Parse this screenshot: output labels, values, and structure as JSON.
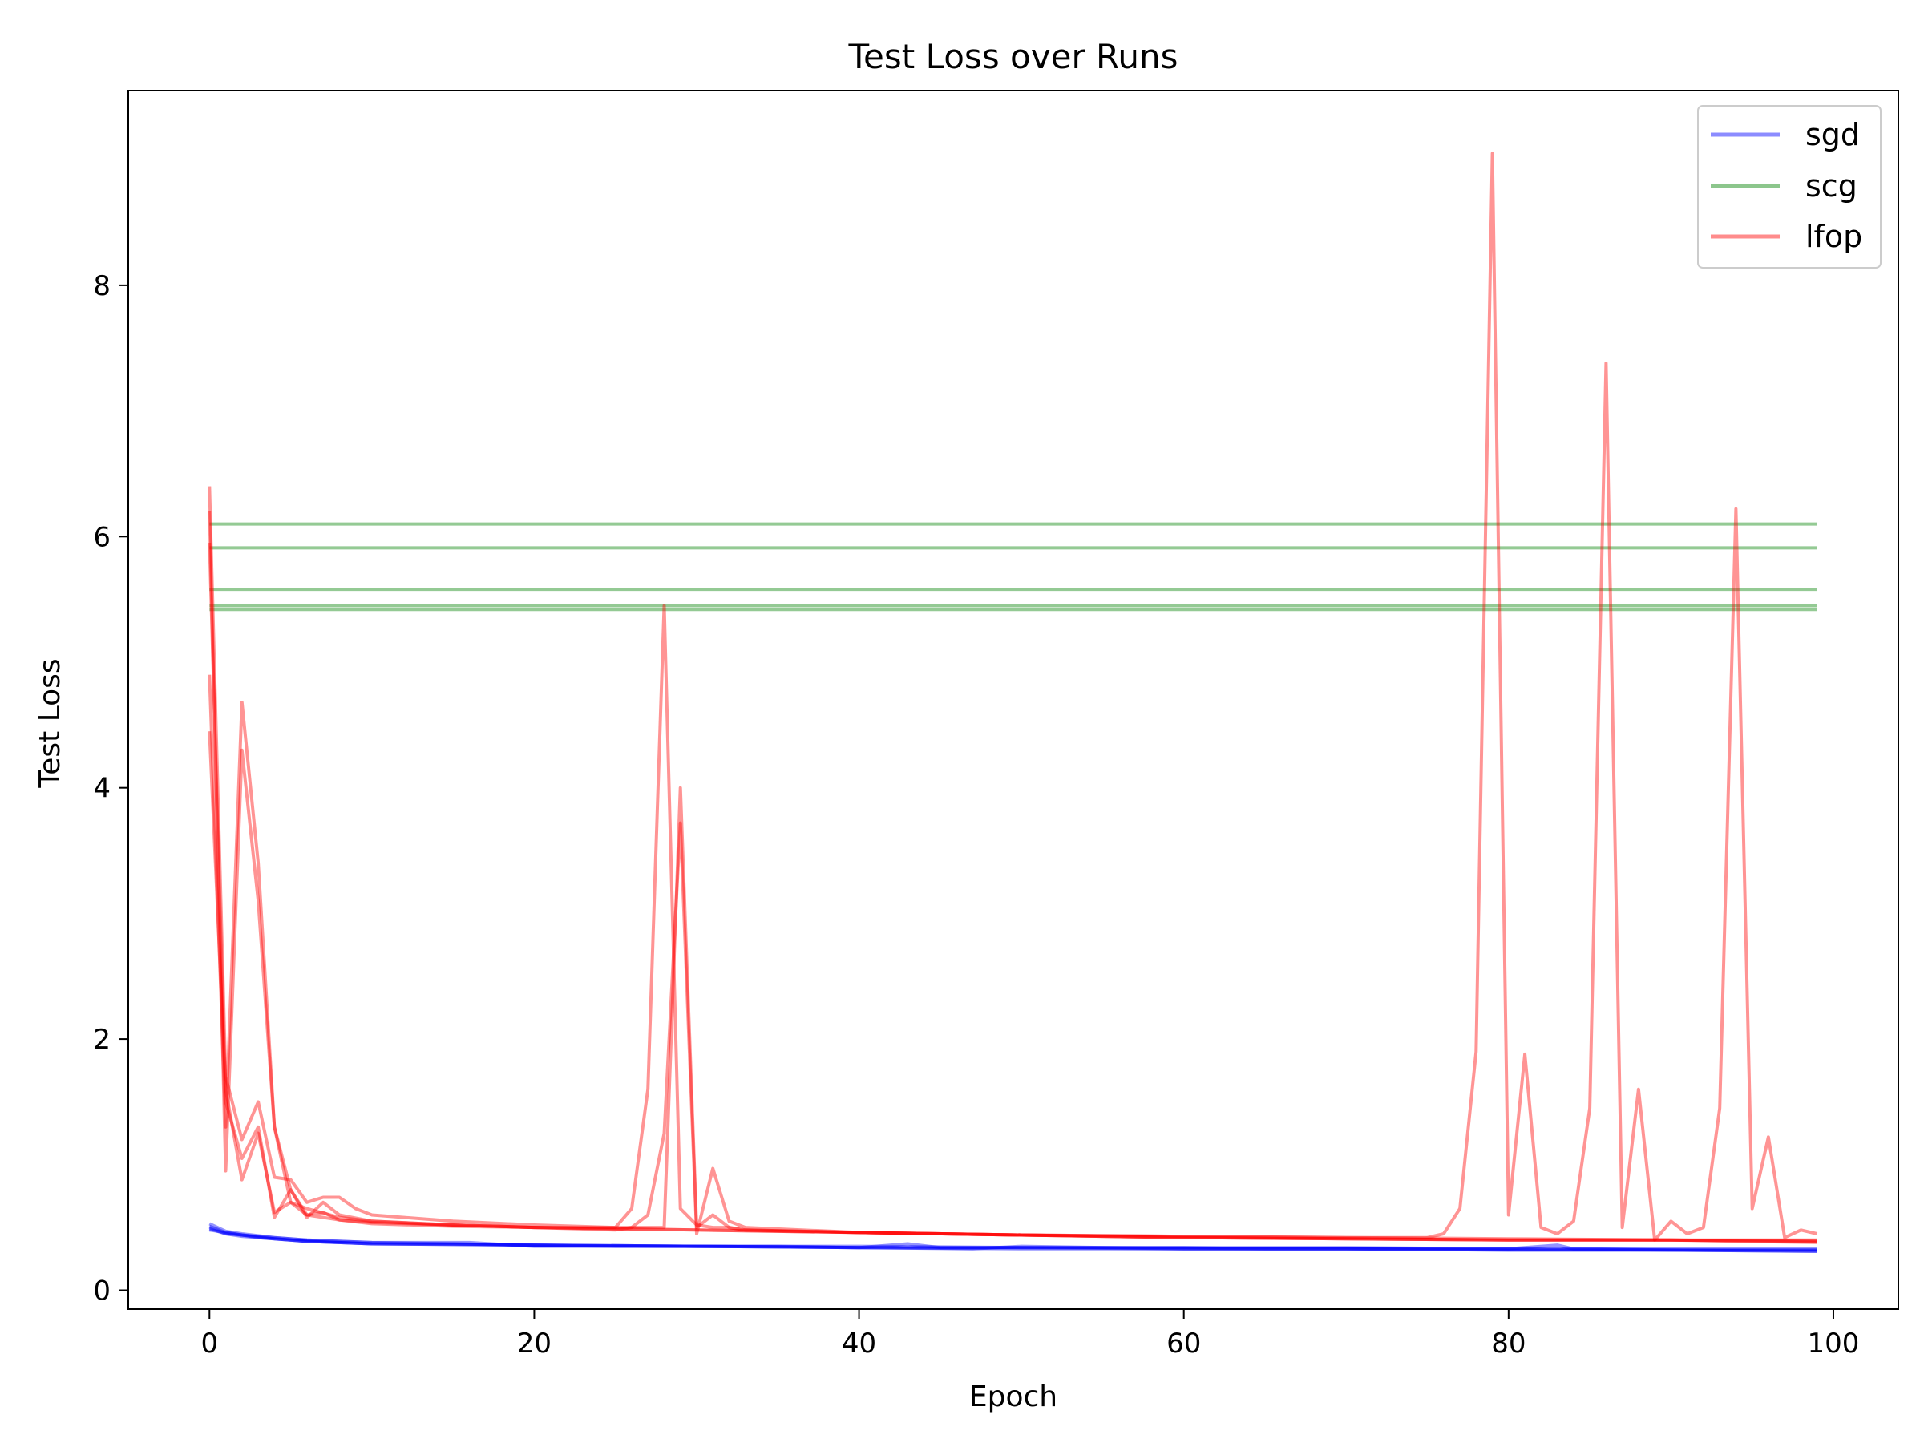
{
  "chart_data": {
    "type": "line",
    "title": "Test Loss over Runs",
    "xlabel": "Epoch",
    "ylabel": "Test Loss",
    "xlim": [
      -5,
      104
    ],
    "ylim": [
      -0.15,
      9.55
    ],
    "xticks": [
      0,
      20,
      40,
      60,
      80,
      100
    ],
    "yticks": [
      0,
      2,
      4,
      6,
      8
    ],
    "xtick_labels": [
      "0",
      "20",
      "40",
      "60",
      "80",
      "100"
    ],
    "ytick_labels": [
      "0",
      "2",
      "4",
      "6",
      "8"
    ],
    "grid": false,
    "legend": {
      "placement": "top-right",
      "entries": [
        {
          "label": "sgd",
          "color": "#0000ff"
        },
        {
          "label": "scg",
          "color": "#008000"
        },
        {
          "label": "lfop",
          "color": "#ff0000"
        }
      ]
    },
    "series": [
      {
        "name": "sgd",
        "color": "#0000ff",
        "run": 1,
        "x": [
          0,
          1,
          2,
          3,
          4,
          5,
          6,
          8,
          10,
          15,
          20,
          25,
          30,
          35,
          40,
          43,
          45,
          50,
          55,
          60,
          65,
          70,
          75,
          80,
          83,
          84,
          85,
          90,
          95,
          99
        ],
        "y": [
          0.5,
          0.45,
          0.44,
          0.42,
          0.41,
          0.4,
          0.39,
          0.38,
          0.37,
          0.37,
          0.36,
          0.35,
          0.35,
          0.35,
          0.34,
          0.37,
          0.34,
          0.34,
          0.34,
          0.34,
          0.33,
          0.33,
          0.33,
          0.33,
          0.36,
          0.33,
          0.33,
          0.32,
          0.32,
          0.32
        ]
      },
      {
        "name": "sgd",
        "color": "#0000ff",
        "run": 2,
        "x": [
          0,
          1,
          2,
          4,
          6,
          10,
          15,
          20,
          30,
          40,
          50,
          60,
          70,
          80,
          90,
          99
        ],
        "y": [
          0.53,
          0.47,
          0.45,
          0.42,
          0.4,
          0.38,
          0.37,
          0.36,
          0.35,
          0.35,
          0.34,
          0.34,
          0.34,
          0.33,
          0.33,
          0.33
        ]
      },
      {
        "name": "sgd",
        "color": "#0000ff",
        "run": 3,
        "x": [
          0,
          1,
          2,
          4,
          6,
          10,
          16,
          20,
          30,
          40,
          47,
          50,
          60,
          70,
          80,
          90,
          99
        ],
        "y": [
          0.48,
          0.46,
          0.44,
          0.42,
          0.4,
          0.38,
          0.38,
          0.35,
          0.35,
          0.34,
          0.33,
          0.35,
          0.33,
          0.33,
          0.32,
          0.32,
          0.31
        ]
      },
      {
        "name": "sgd",
        "color": "#0000ff",
        "run": 4,
        "x": [
          0,
          1,
          2,
          4,
          6,
          10,
          20,
          30,
          40,
          50,
          60,
          70,
          80,
          90,
          99
        ],
        "y": [
          0.51,
          0.46,
          0.44,
          0.41,
          0.39,
          0.37,
          0.36,
          0.35,
          0.34,
          0.34,
          0.33,
          0.33,
          0.33,
          0.32,
          0.32
        ]
      },
      {
        "name": "sgd",
        "color": "#0000ff",
        "run": 5,
        "x": [
          0,
          1,
          2,
          4,
          6,
          10,
          20,
          30,
          40,
          50,
          60,
          70,
          80,
          90,
          99
        ],
        "y": [
          0.49,
          0.45,
          0.43,
          0.41,
          0.39,
          0.37,
          0.36,
          0.35,
          0.34,
          0.33,
          0.33,
          0.33,
          0.32,
          0.32,
          0.31
        ]
      },
      {
        "name": "scg",
        "color": "#008000",
        "run": 1,
        "x": [
          0,
          99
        ],
        "y": [
          6.1,
          6.1
        ]
      },
      {
        "name": "scg",
        "color": "#008000",
        "run": 2,
        "x": [
          0,
          99
        ],
        "y": [
          5.91,
          5.91
        ]
      },
      {
        "name": "scg",
        "color": "#008000",
        "run": 3,
        "x": [
          0,
          99
        ],
        "y": [
          5.58,
          5.58
        ]
      },
      {
        "name": "scg",
        "color": "#008000",
        "run": 4,
        "x": [
          0,
          99
        ],
        "y": [
          5.45,
          5.45
        ]
      },
      {
        "name": "scg",
        "color": "#008000",
        "run": 5,
        "x": [
          0,
          99
        ],
        "y": [
          5.42,
          5.42
        ]
      },
      {
        "name": "lfop",
        "color": "#ff0000",
        "run": 1,
        "x": [
          0,
          1,
          2,
          3,
          4,
          5,
          6,
          7,
          8,
          9,
          10,
          12,
          15,
          20,
          25,
          26,
          27,
          28,
          29,
          30,
          31,
          32,
          33,
          40,
          50,
          60,
          70,
          75,
          76,
          77,
          78,
          79,
          80,
          81,
          82,
          83,
          84,
          85,
          86,
          87,
          88,
          89,
          90,
          91,
          92,
          93,
          94,
          95,
          96,
          97,
          98,
          99
        ],
        "y": [
          6.4,
          1.7,
          1.2,
          1.5,
          0.9,
          0.88,
          0.7,
          0.74,
          0.74,
          0.65,
          0.6,
          0.58,
          0.55,
          0.52,
          0.5,
          0.65,
          1.6,
          5.45,
          0.65,
          0.52,
          0.5,
          0.5,
          0.48,
          0.46,
          0.44,
          0.43,
          0.42,
          0.42,
          0.45,
          0.65,
          1.9,
          9.05,
          0.6,
          1.88,
          0.5,
          0.45,
          0.55,
          1.45,
          7.38,
          0.5,
          1.6,
          0.4,
          0.55,
          0.45,
          0.5,
          1.45,
          6.22,
          0.65,
          1.22,
          0.42,
          0.48,
          0.45
        ]
      },
      {
        "name": "lfop",
        "color": "#ff0000",
        "run": 2,
        "x": [
          0,
          1,
          2,
          3,
          4,
          5,
          6,
          7,
          8,
          10,
          15,
          20,
          25,
          27,
          28,
          29,
          30,
          31,
          32,
          33,
          40,
          50,
          60,
          70,
          80,
          90,
          99
        ],
        "y": [
          4.9,
          1.3,
          4.68,
          3.4,
          1.3,
          0.7,
          0.6,
          0.62,
          0.56,
          0.54,
          0.52,
          0.5,
          0.5,
          0.5,
          0.5,
          4.0,
          0.5,
          0.6,
          0.5,
          0.48,
          0.46,
          0.44,
          0.43,
          0.42,
          0.41,
          0.4,
          0.4
        ]
      },
      {
        "name": "lfop",
        "color": "#ff0000",
        "run": 3,
        "x": [
          0,
          1,
          2,
          3,
          4,
          5,
          6,
          7,
          8,
          10,
          15,
          20,
          25,
          26,
          27,
          28,
          29,
          30,
          31,
          32,
          33,
          40,
          50,
          60,
          70,
          80,
          90,
          99
        ],
        "y": [
          6.2,
          0.95,
          4.3,
          3.1,
          1.3,
          0.8,
          0.58,
          0.7,
          0.6,
          0.55,
          0.52,
          0.5,
          0.48,
          0.5,
          0.6,
          1.25,
          3.72,
          0.45,
          0.97,
          0.55,
          0.5,
          0.46,
          0.44,
          0.42,
          0.41,
          0.4,
          0.4,
          0.38
        ]
      },
      {
        "name": "lfop",
        "color": "#ff0000",
        "run": 4,
        "x": [
          0,
          1,
          2,
          3,
          4,
          5,
          6,
          8,
          10,
          15,
          20,
          30,
          40,
          50,
          60,
          70,
          80,
          90,
          99
        ],
        "y": [
          4.45,
          1.6,
          0.88,
          1.25,
          0.62,
          0.7,
          0.65,
          0.58,
          0.55,
          0.52,
          0.5,
          0.48,
          0.46,
          0.44,
          0.42,
          0.41,
          0.4,
          0.4,
          0.39
        ]
      },
      {
        "name": "lfop",
        "color": "#ff0000",
        "run": 5,
        "x": [
          0,
          1,
          2,
          3,
          4,
          5,
          6,
          8,
          10,
          15,
          20,
          30,
          40,
          50,
          60,
          70,
          80,
          90,
          99
        ],
        "y": [
          5.95,
          1.5,
          1.05,
          1.3,
          0.58,
          0.8,
          0.6,
          0.56,
          0.53,
          0.51,
          0.5,
          0.48,
          0.46,
          0.44,
          0.42,
          0.41,
          0.4,
          0.4,
          0.39
        ]
      }
    ]
  }
}
